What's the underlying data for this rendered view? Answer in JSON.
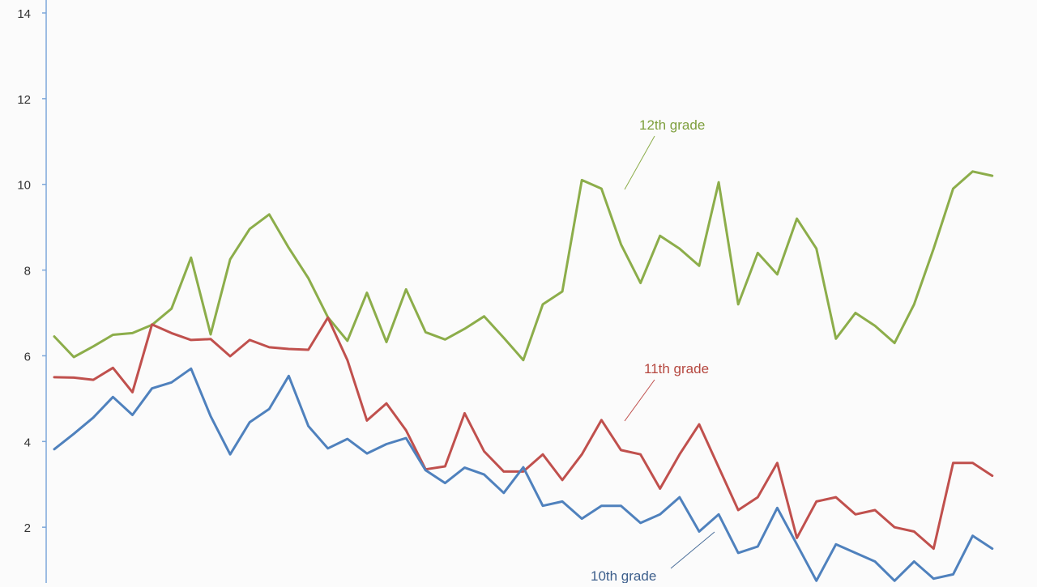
{
  "chart_data": {
    "type": "line",
    "title": "",
    "xlabel": "",
    "ylabel": "",
    "ylim": [
      0,
      14
    ],
    "y_ticks": [
      "2",
      "4",
      "6",
      "8",
      "10",
      "12",
      "14"
    ],
    "grid": false,
    "legend": "none",
    "point_count": 49,
    "series": [
      {
        "name": "12th grade",
        "color": "#8cad4a",
        "values": [
          6.45,
          5.97,
          6.22,
          6.49,
          6.53,
          6.72,
          7.1,
          8.29,
          6.5,
          8.25,
          8.96,
          9.3,
          8.52,
          7.81,
          6.9,
          6.35,
          7.47,
          6.32,
          7.55,
          6.55,
          6.38,
          6.63,
          6.92,
          6.42,
          5.9,
          7.2,
          7.5,
          10.1,
          9.9,
          8.6,
          7.7,
          8.8,
          8.5,
          8.1,
          10.05,
          7.2,
          8.4,
          7.9,
          9.2,
          8.5,
          6.4,
          7.0,
          6.7,
          6.3,
          7.2,
          8.5,
          9.9,
          10.3,
          10.2
        ]
      },
      {
        "name": "11th grade",
        "color": "#c0504d",
        "values": [
          5.5,
          5.49,
          5.44,
          5.72,
          5.15,
          6.73,
          6.53,
          6.37,
          6.39,
          5.99,
          6.37,
          6.2,
          6.16,
          6.14,
          6.89,
          5.9,
          4.49,
          4.89,
          4.26,
          3.35,
          3.42,
          4.66,
          3.77,
          3.3,
          3.3,
          3.7,
          3.1,
          3.7,
          4.5,
          3.8,
          3.7,
          2.9,
          3.7,
          4.4,
          3.4,
          2.4,
          2.7,
          3.5,
          1.75,
          2.6,
          2.7,
          2.3,
          2.4,
          2.0,
          1.9,
          1.5,
          3.5,
          3.5,
          3.2
        ]
      },
      {
        "name": "10th grade",
        "color": "#4f81bd",
        "values": [
          3.82,
          4.18,
          4.56,
          5.04,
          4.62,
          5.24,
          5.38,
          5.7,
          4.59,
          3.7,
          4.45,
          4.76,
          5.53,
          4.36,
          3.84,
          4.06,
          3.72,
          3.94,
          4.08,
          3.33,
          3.03,
          3.39,
          3.23,
          2.8,
          3.4,
          2.5,
          2.6,
          2.2,
          2.5,
          2.5,
          2.1,
          2.3,
          2.7,
          1.9,
          2.3,
          1.4,
          1.55,
          2.45,
          1.6,
          0.75,
          1.6,
          1.4,
          1.2,
          0.75,
          1.2,
          0.8,
          0.9,
          1.8,
          1.5
        ]
      }
    ],
    "annotations": [
      {
        "text": "12th grade",
        "series": "12th grade"
      },
      {
        "text": "11th grade",
        "series": "11th grade"
      },
      {
        "text": "10th grade",
        "series": "10th grade"
      }
    ]
  }
}
